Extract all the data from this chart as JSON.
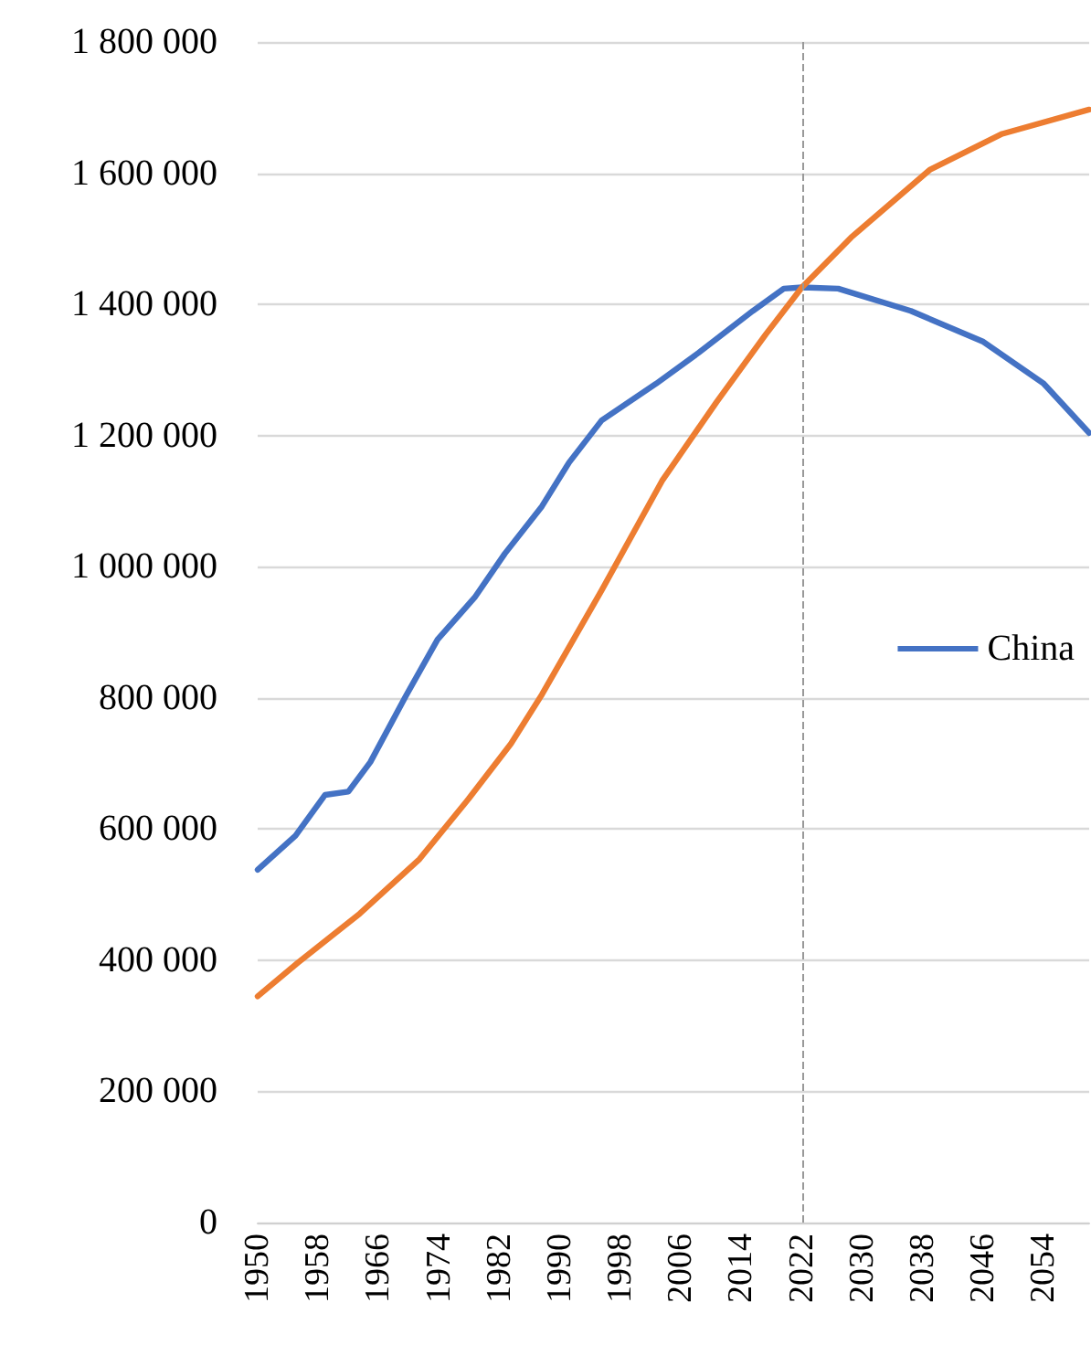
{
  "chart_data": {
    "type": "line",
    "series": [
      {
        "name": "China",
        "color": "#4472c4",
        "x": [
          1950,
          1955,
          1958.9,
          1962,
          1964.9,
          1969.7,
          1973.8,
          1978.7,
          1982.7,
          1987.6,
          1991.2,
          1995.5,
          2002.7,
          2008.3,
          2015.5,
          2019.6,
          2022,
          2026.8,
          2036.4,
          2046,
          2054,
          2060
        ],
        "values": [
          538000,
          590000,
          652000,
          657000,
          702000,
          805000,
          889000,
          953000,
          1020000,
          1092000,
          1159000,
          1223000,
          1279000,
          1326000,
          1390000,
          1424000,
          1426000,
          1424000,
          1390000,
          1343000,
          1279000,
          1204000
        ]
      },
      {
        "color": "#ed7d31",
        "x": [
          1950,
          1955.3,
          1963.5,
          1971.4,
          1977.9,
          1983.5,
          1987.6,
          1995.5,
          2003.5,
          2010.7,
          2017.2,
          2022,
          2028.5,
          2038.9,
          2048.5,
          2060
        ],
        "values": [
          345000,
          396000,
          471000,
          554000,
          646000,
          730000,
          805000,
          964000,
          1131000,
          1251000,
          1354000,
          1426000,
          1502000,
          1605000,
          1660000,
          1697000
        ]
      }
    ],
    "xlim": [
      1950,
      2060
    ],
    "xticks": [
      1950,
      1958,
      1966,
      1974,
      1982,
      1990,
      1998,
      2006,
      2014,
      2022,
      2030,
      2038,
      2046,
      2054
    ],
    "ylim": [
      0,
      1800000
    ],
    "yticks": [
      0,
      {
        "value": 200000,
        "label": "200 000"
      },
      {
        "value": 400000,
        "label": "400 000"
      },
      {
        "value": 600000,
        "label": "600 000"
      },
      {
        "value": 800000,
        "label": "800 000"
      },
      {
        "value": 1000000,
        "label": "1 000 000"
      },
      {
        "value": 1200000,
        "label": "1 200 000"
      },
      {
        "value": 1400000,
        "label": "1 400 000"
      },
      {
        "value": 1600000,
        "label": "1 600 000"
      },
      {
        "value": 1800000,
        "label": "1 800 000"
      }
    ],
    "grid": "y",
    "legend": "right",
    "marker": "none",
    "line_style": "solid",
    "ref_lines": [
      {
        "axis": "x",
        "value": 2022,
        "color": "#999999",
        "line_style": "dashed"
      }
    ]
  }
}
